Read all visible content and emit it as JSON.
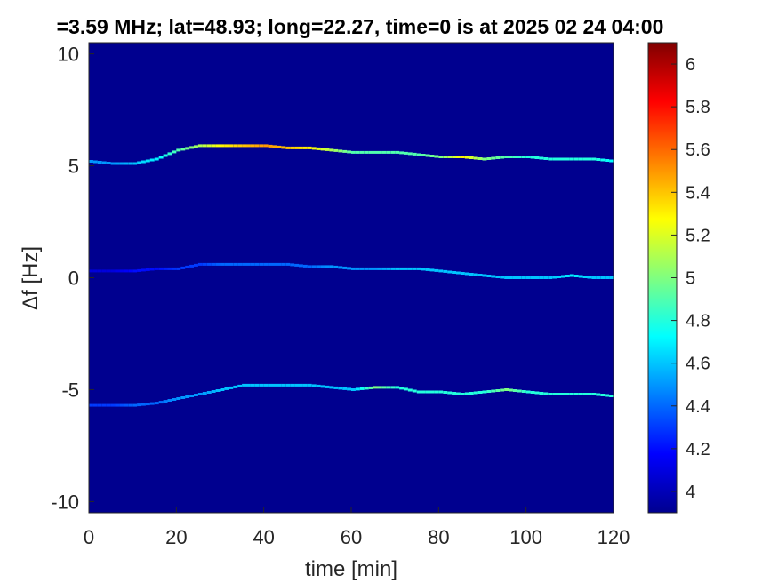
{
  "chart_data": {
    "type": "heatmap",
    "title": "=3.59 MHz;  lat=48.93; long=22.27, time=0 is at 2025 02 24 04:00",
    "xlabel": "time [min]",
    "ylabel": "Δf [Hz]",
    "xlim": [
      0,
      120
    ],
    "ylim": [
      -10.5,
      10.5
    ],
    "xticks": [
      "0",
      "20",
      "40",
      "60",
      "80",
      "100",
      "120"
    ],
    "yticks": [
      "10",
      "5",
      "0",
      "-5",
      "-10"
    ],
    "colorbar": {
      "clim": [
        3.9,
        6.1
      ],
      "ticks": [
        "6",
        "5.8",
        "5.6",
        "5.4",
        "5.2",
        "5",
        "4.8",
        "4.6",
        "4.4",
        "4.2",
        "4"
      ],
      "colormap": "jet"
    },
    "background_value": 3.95,
    "series": [
      {
        "x": [
          0,
          5,
          10,
          15,
          20,
          25,
          30,
          35,
          40,
          45,
          50,
          55,
          60,
          65,
          70,
          75,
          80,
          85,
          90,
          95,
          100,
          105,
          110,
          115,
          120
        ],
        "y": [
          5.2,
          5.1,
          5.1,
          5.3,
          5.7,
          5.9,
          5.9,
          5.9,
          5.9,
          5.8,
          5.8,
          5.7,
          5.6,
          5.6,
          5.6,
          5.5,
          5.4,
          5.4,
          5.3,
          5.4,
          5.4,
          5.3,
          5.3,
          5.3,
          5.2
        ],
        "intensity": [
          4.5,
          4.5,
          4.6,
          4.7,
          4.9,
          5.1,
          5.3,
          5.4,
          5.5,
          5.4,
          5.3,
          5.1,
          4.9,
          4.9,
          4.9,
          4.9,
          5.0,
          5.3,
          5.0,
          4.9,
          4.8,
          4.8,
          4.8,
          4.8,
          4.7
        ]
      },
      {
        "x": [
          0,
          5,
          10,
          15,
          20,
          25,
          30,
          35,
          40,
          45,
          50,
          55,
          60,
          65,
          70,
          75,
          80,
          85,
          90,
          95,
          100,
          105,
          110,
          115,
          120
        ],
        "y": [
          0.3,
          0.3,
          0.3,
          0.4,
          0.4,
          0.6,
          0.6,
          0.6,
          0.6,
          0.6,
          0.5,
          0.5,
          0.4,
          0.4,
          0.4,
          0.4,
          0.3,
          0.2,
          0.1,
          0.0,
          0.0,
          0.0,
          0.1,
          0.0,
          0.0
        ],
        "intensity": [
          4.1,
          4.1,
          4.2,
          4.2,
          4.3,
          4.3,
          4.4,
          4.4,
          4.4,
          4.4,
          4.4,
          4.5,
          4.5,
          4.5,
          4.6,
          4.6,
          4.6,
          4.6,
          4.6,
          4.6,
          4.6,
          4.6,
          4.7,
          4.6,
          4.6
        ]
      },
      {
        "x": [
          0,
          5,
          10,
          15,
          20,
          25,
          30,
          35,
          40,
          45,
          50,
          55,
          60,
          65,
          70,
          75,
          80,
          85,
          90,
          95,
          100,
          105,
          110,
          115,
          120
        ],
        "y": [
          -5.7,
          -5.7,
          -5.7,
          -5.6,
          -5.4,
          -5.2,
          -5.0,
          -4.8,
          -4.8,
          -4.8,
          -4.8,
          -4.9,
          -5.0,
          -4.9,
          -4.9,
          -5.1,
          -5.1,
          -5.2,
          -5.1,
          -5.0,
          -5.1,
          -5.2,
          -5.2,
          -5.2,
          -5.3
        ],
        "intensity": [
          4.3,
          4.3,
          4.4,
          4.4,
          4.5,
          4.5,
          4.6,
          4.6,
          4.6,
          4.6,
          4.6,
          4.6,
          4.6,
          5.0,
          4.8,
          4.8,
          4.8,
          4.8,
          4.8,
          5.0,
          4.8,
          4.8,
          4.8,
          4.8,
          4.8
        ]
      }
    ]
  }
}
